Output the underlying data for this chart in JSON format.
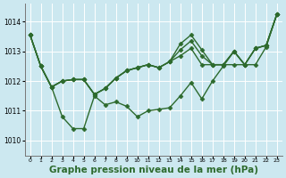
{
  "bg_color": "#cce8f0",
  "grid_color": "#ffffff",
  "line_color": "#2d6a2d",
  "marker": "D",
  "markersize": 2.5,
  "linewidth": 1.0,
  "xlabel": "Graphe pression niveau de la mer (hPa)",
  "xlabel_fontsize": 7.5,
  "xlim": [
    -0.5,
    23.5
  ],
  "ylim": [
    1009.5,
    1014.6
  ],
  "yticks": [
    1010,
    1011,
    1012,
    1013,
    1014
  ],
  "xticks": [
    0,
    1,
    2,
    3,
    4,
    5,
    6,
    7,
    8,
    9,
    10,
    11,
    12,
    13,
    14,
    15,
    16,
    17,
    18,
    19,
    20,
    21,
    22,
    23
  ],
  "series": [
    [
      1013.55,
      1012.5,
      1011.8,
      1010.8,
      1010.4,
      1010.4,
      1011.5,
      1011.2,
      1011.3,
      1011.15,
      1010.8,
      1011.0,
      1011.05,
      1011.1,
      1011.5,
      1011.95,
      1011.4,
      1012.0,
      1012.5,
      1013.0,
      1012.55,
      1013.1,
      1013.2,
      1014.25
    ],
    [
      1013.55,
      1012.5,
      1011.8,
      1012.0,
      1012.05,
      1012.05,
      1011.55,
      1011.75,
      1012.1,
      1012.35,
      1012.45,
      1012.55,
      1012.45,
      1012.65,
      1012.85,
      1013.1,
      1012.55,
      1012.55,
      1012.55,
      1012.55,
      1012.55,
      1012.55,
      1013.15,
      1014.25
    ],
    [
      1013.55,
      1012.5,
      1011.8,
      1012.0,
      1012.05,
      1012.05,
      1011.55,
      1011.75,
      1012.1,
      1012.35,
      1012.45,
      1012.55,
      1012.45,
      1012.65,
      1013.05,
      1013.35,
      1012.85,
      1012.55,
      1012.55,
      1013.0,
      1012.55,
      1013.1,
      1013.2,
      1014.25
    ],
    [
      1013.55,
      1012.5,
      1011.8,
      1012.0,
      1012.05,
      1012.05,
      1011.55,
      1011.75,
      1012.1,
      1012.35,
      1012.45,
      1012.55,
      1012.45,
      1012.65,
      1013.25,
      1013.55,
      1013.05,
      1012.55,
      1012.55,
      1013.0,
      1012.55,
      1013.1,
      1013.2,
      1014.25
    ]
  ]
}
